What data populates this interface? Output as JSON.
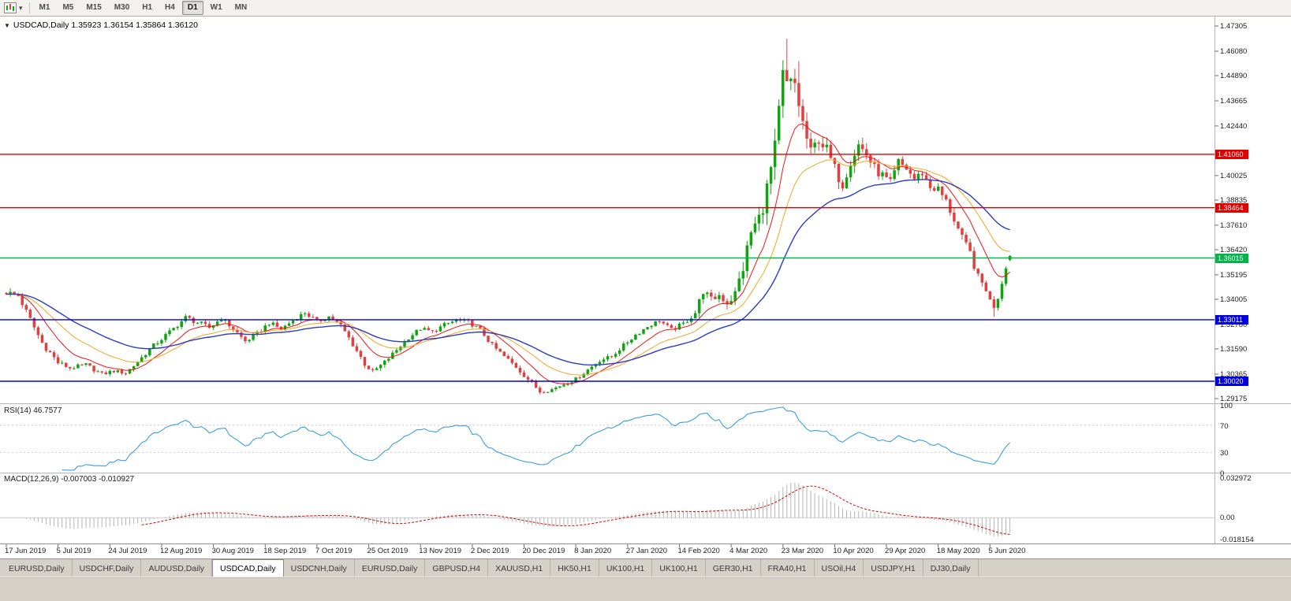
{
  "toolbar": {
    "periods": [
      "M1",
      "M5",
      "M15",
      "M30",
      "H1",
      "H4",
      "D1",
      "W1",
      "MN"
    ],
    "active_period_index": 6
  },
  "chart": {
    "title_line": "USDCAD,Daily 1.35923 1.36154 1.35864 1.36120",
    "oct_arrow": "▼"
  },
  "price_axis": {
    "ticks": [
      "1.47305",
      "1.46080",
      "1.44890",
      "1.43665",
      "1.42440",
      "1.40025",
      "1.38835",
      "1.37610",
      "1.36420",
      "1.35195",
      "1.34005",
      "1.32780",
      "1.31590",
      "1.30365",
      "1.29175"
    ]
  },
  "rsi": {
    "label": "RSI(14) 46.7577",
    "value": 46.7577,
    "period": 14,
    "color": "#3b9fe0",
    "levels": [
      {
        "label": "100",
        "value": 100,
        "line": false
      },
      {
        "label": "70",
        "value": 70,
        "line": true
      },
      {
        "label": "30",
        "value": 30,
        "line": true
      },
      {
        "label": "0",
        "value": 0,
        "line": false
      }
    ]
  },
  "macd": {
    "label": "MACD(12,26,9) -0.007003 -0.010927",
    "macd_value": -0.007003,
    "signal_value": -0.010927,
    "histogram_color": "#b5b5b5",
    "signal_color": "#e00000",
    "axis": [
      {
        "label": "0.032972",
        "value": 0.032972
      },
      {
        "label": "0.00",
        "value": 0
      },
      {
        "label": "-0.018154",
        "value": -0.018154
      }
    ]
  },
  "date_axis": {
    "labels": [
      "17 Jun 2019",
      "5 Jul 2019",
      "24 Jul 2019",
      "12 Aug 2019",
      "30 Aug 2019",
      "18 Sep 2019",
      "7 Oct 2019",
      "25 Oct 2019",
      "13 Nov 2019",
      "2 Dec 2019",
      "20 Dec 2019",
      "8 Jan 2020",
      "27 Jan 2020",
      "14 Feb 2020",
      "4 Mar 2020",
      "23 Mar 2020",
      "10 Apr 2020",
      "29 Apr 2020",
      "18 May 2020",
      "5 Jun 2020"
    ]
  },
  "tabs": {
    "items": [
      "EURUSD,Daily",
      "USDCHF,Daily",
      "AUDUSD,Daily",
      "USDCAD,Daily",
      "USDCNH,Daily",
      "EURUSD,Daily",
      "GBPUSD,H4",
      "XAUUSD,H1",
      "HK50,H1",
      "UK100,H1",
      "UK100,H1",
      "GER30,H1",
      "FRA40,H1",
      "USOil,H4",
      "USDJPY,H1",
      "DJ30,Daily"
    ],
    "active_index": 3
  },
  "chart_data": {
    "type": "candlestick",
    "symbol": "USDCAD",
    "timeframe": "Daily",
    "last_quote": {
      "open": 1.35923,
      "high": 1.36154,
      "low": 1.35864,
      "close": 1.3612
    },
    "y_axis": {
      "min": 1.29175,
      "max": 1.47305
    },
    "bars": 253,
    "label_every_bars": 13,
    "colors": {
      "up": "#0fa50f",
      "down": "#e04040",
      "background": "#ffffff",
      "foreground": "#000000"
    },
    "moving_averages": [
      {
        "period": 10,
        "color": "#f01414",
        "width": 1
      },
      {
        "period": 21,
        "color": "#f5a623",
        "width": 1
      },
      {
        "period": 40,
        "color": "#2b3cc4",
        "width": 1.4
      }
    ],
    "horizontal_lines": [
      {
        "label": "1.41060",
        "price": 1.4106,
        "color": "#e00000"
      },
      {
        "label": "1.38464",
        "price": 1.38464,
        "color": "#e00000"
      },
      {
        "label": "1.36015",
        "price": 1.36015,
        "color": "#00b44a"
      },
      {
        "label": "1.33011",
        "price": 1.33011,
        "color": "#0000e0"
      },
      {
        "label": "1.30020",
        "price": 1.3002,
        "color": "#0000e0"
      }
    ],
    "anchors": [
      [
        0,
        1.3435,
        0.0035
      ],
      [
        3,
        1.3418,
        0.003
      ],
      [
        6,
        1.3302,
        0.0035
      ],
      [
        9,
        1.3188,
        0.0035
      ],
      [
        13,
        1.3092,
        0.003
      ],
      [
        16,
        1.3066,
        0.0022
      ],
      [
        20,
        1.3082,
        0.0022
      ],
      [
        24,
        1.3036,
        0.0022
      ],
      [
        27,
        1.3052,
        0.002
      ],
      [
        30,
        1.3042,
        0.002
      ],
      [
        33,
        1.3096,
        0.0026
      ],
      [
        36,
        1.3158,
        0.0026
      ],
      [
        39,
        1.3208,
        0.0026
      ],
      [
        42,
        1.3258,
        0.0026
      ],
      [
        45,
        1.3312,
        0.0026
      ],
      [
        48,
        1.3288,
        0.003
      ],
      [
        51,
        1.3262,
        0.0026
      ],
      [
        54,
        1.3308,
        0.0026
      ],
      [
        57,
        1.3256,
        0.0026
      ],
      [
        60,
        1.3196,
        0.0026
      ],
      [
        63,
        1.3232,
        0.0026
      ],
      [
        66,
        1.3286,
        0.0026
      ],
      [
        69,
        1.3256,
        0.0022
      ],
      [
        72,
        1.3298,
        0.0022
      ],
      [
        75,
        1.3336,
        0.0026
      ],
      [
        78,
        1.3292,
        0.0026
      ],
      [
        81,
        1.3316,
        0.0026
      ],
      [
        84,
        1.3272,
        0.0026
      ],
      [
        87,
        1.3182,
        0.003
      ],
      [
        90,
        1.3086,
        0.003
      ],
      [
        92,
        1.3046,
        0.0026
      ],
      [
        95,
        1.3094,
        0.0026
      ],
      [
        98,
        1.3154,
        0.0022
      ],
      [
        101,
        1.3214,
        0.0022
      ],
      [
        104,
        1.3258,
        0.0022
      ],
      [
        107,
        1.3242,
        0.0022
      ],
      [
        110,
        1.3276,
        0.0022
      ],
      [
        113,
        1.3298,
        0.0022
      ],
      [
        116,
        1.329,
        0.0022
      ],
      [
        119,
        1.3252,
        0.0022
      ],
      [
        122,
        1.3176,
        0.0026
      ],
      [
        125,
        1.3122,
        0.0026
      ],
      [
        128,
        1.3072,
        0.0026
      ],
      [
        131,
        1.3012,
        0.0026
      ],
      [
        134,
        1.2952,
        0.0024
      ],
      [
        137,
        1.2962,
        0.002
      ],
      [
        140,
        1.2988,
        0.002
      ],
      [
        143,
        1.3012,
        0.002
      ],
      [
        146,
        1.3058,
        0.0022
      ],
      [
        149,
        1.3104,
        0.0022
      ],
      [
        152,
        1.3122,
        0.002
      ],
      [
        155,
        1.3176,
        0.0022
      ],
      [
        158,
        1.3228,
        0.0022
      ],
      [
        161,
        1.3268,
        0.0022
      ],
      [
        164,
        1.3298,
        0.0022
      ],
      [
        167,
        1.3252,
        0.0022
      ],
      [
        170,
        1.3282,
        0.0025
      ],
      [
        173,
        1.3336,
        0.004
      ],
      [
        175,
        1.3442,
        0.0045
      ],
      [
        177,
        1.3396,
        0.0045
      ],
      [
        179,
        1.3422,
        0.0045
      ],
      [
        181,
        1.3386,
        0.0055
      ],
      [
        183,
        1.3426,
        0.0065
      ],
      [
        185,
        1.3556,
        0.008
      ],
      [
        187,
        1.3726,
        0.009
      ],
      [
        189,
        1.3792,
        0.01
      ],
      [
        191,
        1.3936,
        0.011
      ],
      [
        193,
        1.4126,
        0.012
      ],
      [
        195,
        1.4482,
        0.013
      ],
      [
        196,
        1.4432,
        0.015
      ],
      [
        198,
        1.4446,
        0.011
      ],
      [
        200,
        1.4256,
        0.01
      ],
      [
        202,
        1.4106,
        0.009
      ],
      [
        204,
        1.4186,
        0.008
      ],
      [
        206,
        1.4126,
        0.0075
      ],
      [
        208,
        1.4032,
        0.0075
      ],
      [
        210,
        1.3962,
        0.0065
      ],
      [
        212,
        1.4076,
        0.0065
      ],
      [
        214,
        1.4152,
        0.0065
      ],
      [
        216,
        1.4106,
        0.0058
      ],
      [
        218,
        1.4036,
        0.0058
      ],
      [
        220,
        1.4002,
        0.0055
      ],
      [
        222,
        1.3962,
        0.0055
      ],
      [
        224,
        1.4066,
        0.0055
      ],
      [
        226,
        1.4036,
        0.0048
      ],
      [
        228,
        1.3986,
        0.0048
      ],
      [
        230,
        1.4016,
        0.0046
      ],
      [
        232,
        1.3946,
        0.0046
      ],
      [
        234,
        1.3936,
        0.0045
      ],
      [
        236,
        1.3876,
        0.0045
      ],
      [
        238,
        1.3788,
        0.0045
      ],
      [
        240,
        1.3696,
        0.0045
      ],
      [
        242,
        1.3626,
        0.0045
      ],
      [
        244,
        1.3506,
        0.0045
      ],
      [
        246,
        1.3452,
        0.0042
      ],
      [
        247,
        1.3392,
        0.004
      ],
      [
        248,
        1.3368,
        0.0036
      ],
      [
        249,
        1.3412,
        0.0032
      ],
      [
        250,
        1.3482,
        0.0028
      ],
      [
        251,
        1.356,
        0.0024
      ],
      [
        252,
        1.3612,
        0.0016
      ]
    ],
    "overrides": {
      "196": {
        "h": 1.4668
      },
      "199": {
        "h": 1.456
      },
      "248": {
        "l": 1.3315
      },
      "252": {
        "o": 1.35923,
        "h": 1.36154,
        "l": 1.35864,
        "c": 1.3612
      }
    }
  }
}
